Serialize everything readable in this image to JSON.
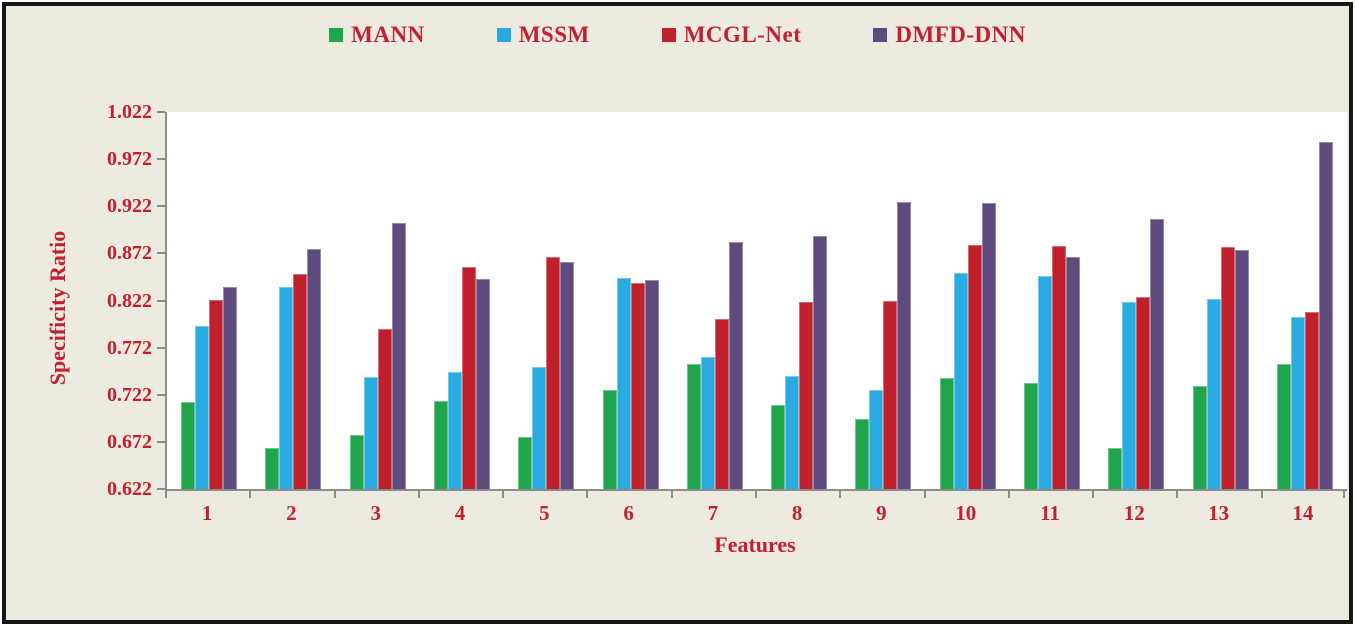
{
  "colors": {
    "background": "#EDEADF",
    "plot_background": "#FFFFFF",
    "frame": "#161616",
    "axis": "#8C8C8C",
    "text": "#C2202E"
  },
  "chart_data": {
    "type": "bar",
    "title": "",
    "xlabel": "Features",
    "ylabel": "Specificity Ratio",
    "categories": [
      "1",
      "2",
      "3",
      "4",
      "5",
      "6",
      "7",
      "8",
      "9",
      "10",
      "11",
      "12",
      "13",
      "14"
    ],
    "series": [
      {
        "name": "MANN",
        "color": "#1FA64D",
        "values": [
          0.714,
          0.666,
          0.679,
          0.715,
          0.677,
          0.727,
          0.755,
          0.711,
          0.696,
          0.74,
          0.734,
          0.665,
          0.731,
          0.755
        ]
      },
      {
        "name": "MSSM",
        "color": "#29ABE2",
        "values": [
          0.795,
          0.836,
          0.741,
          0.746,
          0.751,
          0.846,
          0.762,
          0.742,
          0.727,
          0.851,
          0.848,
          0.82,
          0.824,
          0.804
        ]
      },
      {
        "name": "MCGL-Net",
        "color": "#BF202C",
        "values": [
          0.823,
          0.85,
          0.792,
          0.858,
          0.868,
          0.841,
          0.802,
          0.82,
          0.822,
          0.881,
          0.88,
          0.826,
          0.879,
          0.81
        ]
      },
      {
        "name": "DMFD-DNN",
        "color": "#5E4A7C",
        "values": [
          0.836,
          0.877,
          0.904,
          0.845,
          0.863,
          0.844,
          0.884,
          0.89,
          0.926,
          0.925,
          0.868,
          0.908,
          0.876,
          0.99
        ]
      }
    ],
    "ylim": [
      0.622,
      1.022
    ],
    "yticks": [
      "1.022",
      "0.972",
      "0.922",
      "0.872",
      "0.822",
      "0.772",
      "0.722",
      "0.672",
      "0.622"
    ],
    "grid": false,
    "legend_position": "top"
  }
}
